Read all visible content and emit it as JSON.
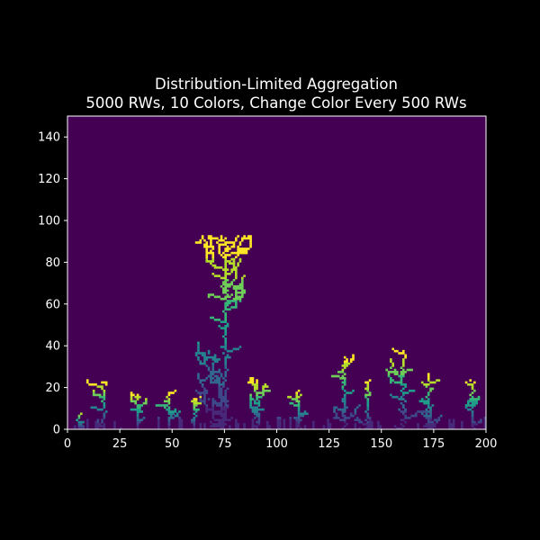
{
  "chart_data": {
    "type": "heatmap",
    "title": "Distribution-Limited Aggregation",
    "subtitle": "5000 RWs, 10 Colors, Change Color Every 500 RWs",
    "xlabel": "",
    "ylabel": "",
    "xlim": [
      0,
      200
    ],
    "ylim": [
      0,
      150
    ],
    "x_ticks": [
      0,
      25,
      50,
      75,
      100,
      125,
      150,
      175,
      200
    ],
    "y_ticks": [
      0,
      20,
      40,
      60,
      80,
      100,
      120,
      140
    ],
    "grid": false,
    "colormap": "viridis",
    "background_color": "#440154",
    "colors": [
      "#482878",
      "#3e4989",
      "#31688e",
      "#26828e",
      "#1f9e89",
      "#35b779",
      "#6ece58",
      "#b5de2b",
      "#fde725"
    ],
    "color_change_every": 500,
    "total_random_walks": 5000,
    "clusters": [
      {
        "x": 5,
        "height": 8,
        "spread": 2
      },
      {
        "x": 17,
        "height": 23,
        "spread": 5
      },
      {
        "x": 33,
        "height": 17,
        "spread": 4
      },
      {
        "x": 48,
        "height": 18,
        "spread": 3
      },
      {
        "x": 60,
        "height": 15,
        "spread": 3
      },
      {
        "x": 75,
        "height": 92,
        "spread": 8
      },
      {
        "x": 90,
        "height": 24,
        "spread": 3
      },
      {
        "x": 110,
        "height": 19,
        "spread": 4
      },
      {
        "x": 132,
        "height": 35,
        "spread": 5
      },
      {
        "x": 143,
        "height": 24,
        "spread": 3
      },
      {
        "x": 160,
        "height": 38,
        "spread": 6
      },
      {
        "x": 172,
        "height": 27,
        "spread": 4
      },
      {
        "x": 193,
        "height": 24,
        "spread": 4
      }
    ]
  }
}
